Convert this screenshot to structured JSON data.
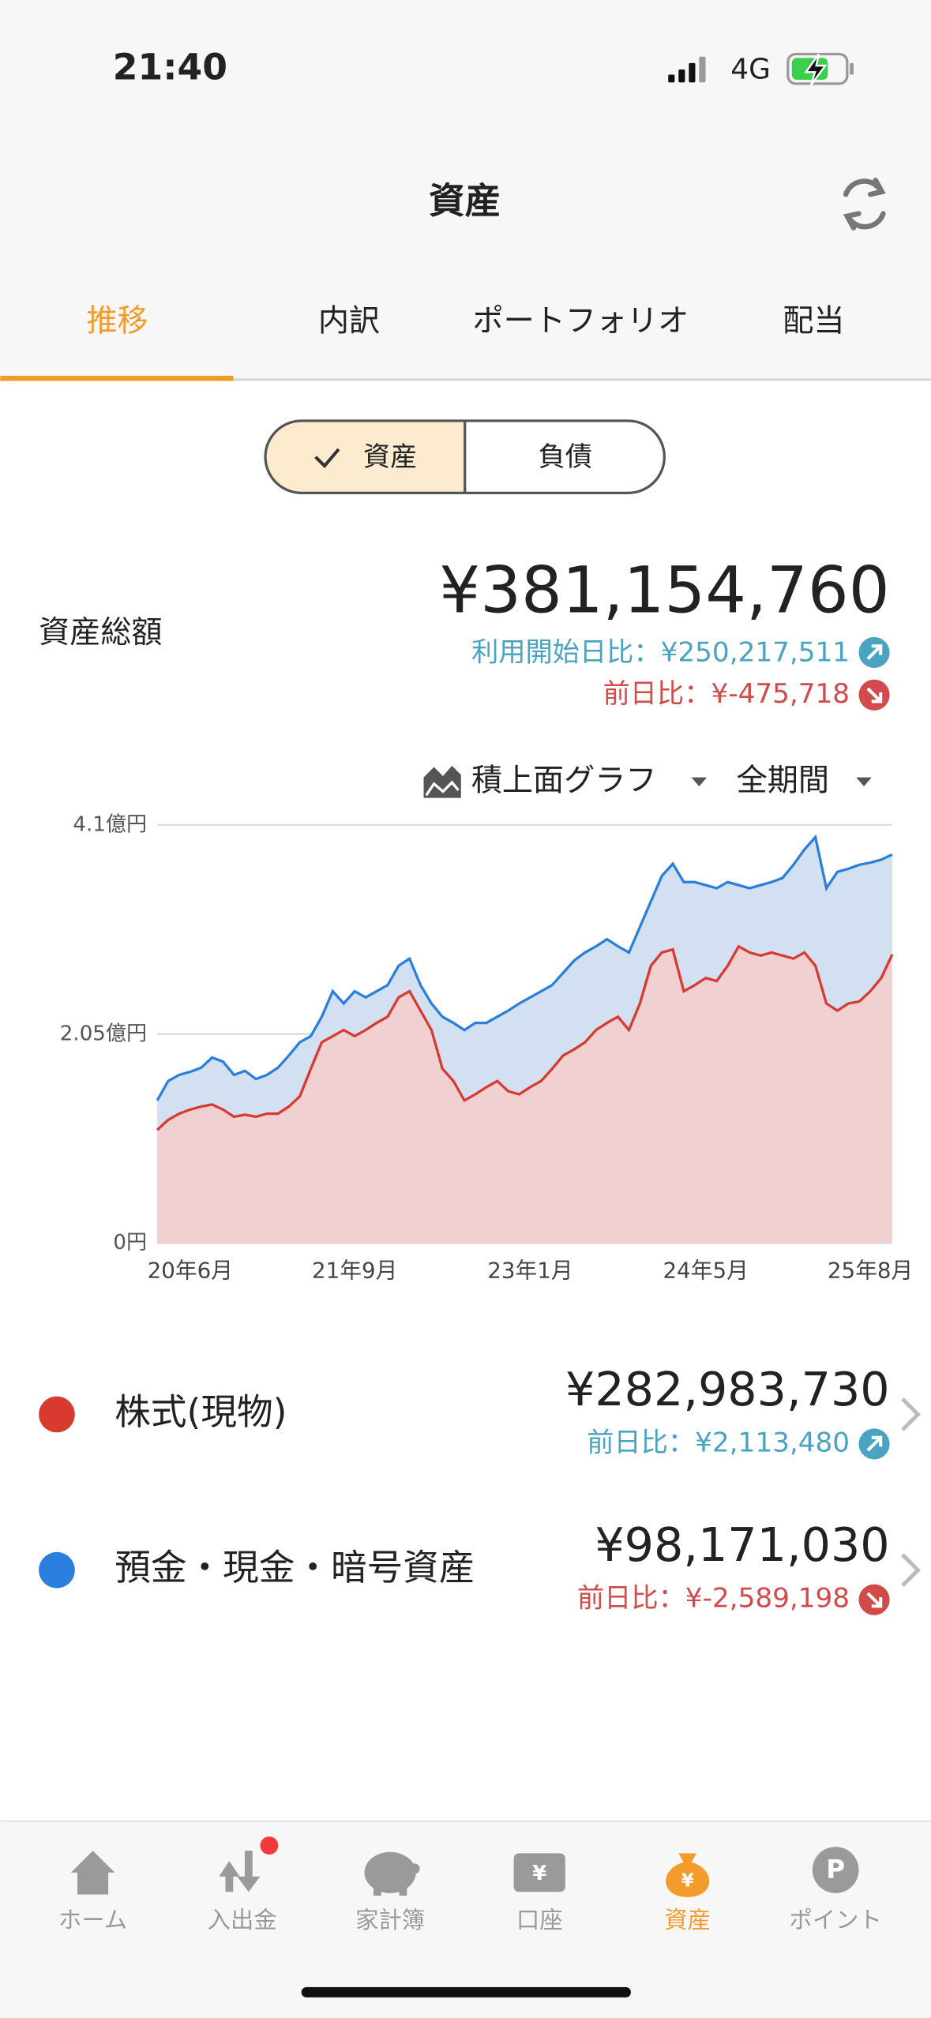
{
  "status": {
    "time": "21:40",
    "network": "4G"
  },
  "header": {
    "title": "資産"
  },
  "tabs": [
    "推移",
    "内訳",
    "ポートフォリオ",
    "配当"
  ],
  "toggle": [
    "資産",
    "負債"
  ],
  "summary": {
    "label": "資産総額",
    "total": "¥381,154,760",
    "since_start": "利用開始日比：¥250,217,511",
    "day_change": "前日比：¥-475,718"
  },
  "chart_controls": {
    "chart_type": "積上面グラフ",
    "period": "全期間"
  },
  "chart_data": {
    "type": "stacked_area",
    "categories": [
      null,
      null,
      null,
      "20年6月",
      null,
      null,
      null,
      null,
      null,
      null,
      null,
      null,
      null,
      null,
      null,
      null,
      null,
      null,
      "21年9月",
      null,
      null,
      null,
      null,
      null,
      null,
      null,
      null,
      null,
      null,
      null,
      null,
      null,
      null,
      null,
      "23年1月",
      null,
      null,
      null,
      null,
      null,
      null,
      null,
      null,
      null,
      null,
      null,
      null,
      null,
      null,
      null,
      "24年5月",
      null,
      null,
      null,
      null,
      null,
      null,
      null,
      null,
      null,
      null,
      null,
      null,
      null,
      null,
      "25年8月",
      null,
      null
    ],
    "series": [
      {
        "name": "株式(現物)",
        "color": "#d93a2f",
        "fill": "#f0d0d0",
        "values": [
          1.11,
          1.21,
          1.27,
          1.31,
          1.34,
          1.36,
          1.31,
          1.24,
          1.26,
          1.24,
          1.27,
          1.27,
          1.34,
          1.44,
          1.71,
          1.97,
          2.03,
          2.09,
          2.03,
          2.09,
          2.16,
          2.22,
          2.41,
          2.47,
          2.28,
          2.09,
          1.71,
          1.59,
          1.4,
          1.46,
          1.53,
          1.59,
          1.49,
          1.46,
          1.53,
          1.59,
          1.71,
          1.84,
          1.9,
          1.97,
          2.09,
          2.16,
          2.22,
          2.09,
          2.35,
          2.72,
          2.85,
          2.88,
          2.47,
          2.53,
          2.6,
          2.57,
          2.72,
          2.91,
          2.85,
          2.82,
          2.85,
          2.82,
          2.79,
          2.85,
          2.72,
          2.35,
          2.28,
          2.35,
          2.37,
          2.47,
          2.6,
          2.83
        ]
      },
      {
        "name": "預金・現金・暗号資産",
        "color": "#2a7fde",
        "fill": "#d3e0f1",
        "values": [
          0.29,
          0.38,
          0.38,
          0.37,
          0.38,
          0.46,
          0.47,
          0.41,
          0.43,
          0.37,
          0.38,
          0.45,
          0.5,
          0.53,
          0.32,
          0.25,
          0.44,
          0.26,
          0.44,
          0.32,
          0.31,
          0.31,
          0.31,
          0.32,
          0.25,
          0.26,
          0.51,
          0.57,
          0.69,
          0.7,
          0.63,
          0.63,
          0.79,
          0.89,
          0.88,
          0.88,
          0.82,
          0.81,
          0.87,
          0.88,
          0.82,
          0.82,
          0.69,
          0.76,
          0.75,
          0.63,
          0.75,
          0.84,
          1.07,
          1.01,
          0.91,
          0.91,
          0.82,
          0.6,
          0.63,
          0.69,
          0.69,
          0.76,
          0.92,
          1.01,
          1.26,
          1.13,
          1.36,
          1.32,
          1.34,
          1.26,
          1.16,
          0.98
        ]
      }
    ],
    "ylim": [
      0,
      4.1
    ],
    "yticks": [
      {
        "value": 0,
        "label": "0円"
      },
      {
        "value": 2.05,
        "label": "2.05億円"
      },
      {
        "value": 4.1,
        "label": "4.1億円"
      }
    ],
    "grid": true
  },
  "breakdown": [
    {
      "amount": "¥282,983,730",
      "day_change": "前日比：¥2,113,480"
    },
    {
      "amount": "¥98,171,030",
      "day_change": "前日比：¥-2,589,198"
    }
  ],
  "nav": [
    "ホーム",
    "入出金",
    "家計簿",
    "口座",
    "資産",
    "ポイント"
  ]
}
